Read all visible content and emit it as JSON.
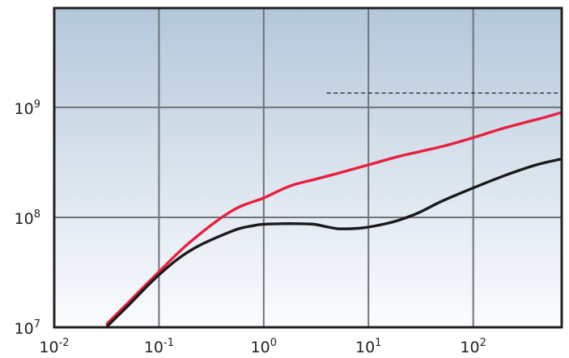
{
  "chart_data": {
    "type": "line",
    "title": "",
    "xlabel": "",
    "ylabel": "",
    "x_scale": "log",
    "y_scale": "log",
    "xlim": [
      0.01,
      700
    ],
    "ylim": [
      10000000,
      8000000000
    ],
    "grid": true,
    "background": "vertical gradient, steel blue at top fading to white at bottom",
    "x_ticks": [
      {
        "base": "10",
        "exp": "-2",
        "value": 0.01
      },
      {
        "base": "10",
        "exp": "-1",
        "value": 0.1
      },
      {
        "base": "10",
        "exp": "0",
        "value": 1
      },
      {
        "base": "10",
        "exp": "1",
        "value": 10
      },
      {
        "base": "10",
        "exp": "2",
        "value": 100
      }
    ],
    "y_ticks": [
      {
        "base": "10",
        "exp": "7",
        "value": 10000000
      },
      {
        "base": "10",
        "exp": "8",
        "value": 100000000
      },
      {
        "base": "10",
        "exp": "9",
        "value": 1000000000
      }
    ],
    "series": [
      {
        "color": "#e8203f",
        "style": "solid",
        "points": [
          [
            0.032,
            10800000
          ],
          [
            0.05,
            16500000
          ],
          [
            0.1,
            32000000
          ],
          [
            0.2,
            60000000
          ],
          [
            0.5,
            115000000
          ],
          [
            1,
            150000000
          ],
          [
            1.5,
            180000000
          ],
          [
            2,
            200000000
          ],
          [
            3,
            220000000
          ],
          [
            5,
            250000000
          ],
          [
            10,
            300000000
          ],
          [
            20,
            360000000
          ],
          [
            50,
            440000000
          ],
          [
            100,
            530000000
          ],
          [
            200,
            650000000
          ],
          [
            500,
            820000000
          ],
          [
            700,
            900000000
          ]
        ]
      },
      {
        "color": "#1a1a1a",
        "style": "solid",
        "points": [
          [
            0.032,
            10200000
          ],
          [
            0.05,
            15500000
          ],
          [
            0.1,
            30000000
          ],
          [
            0.2,
            50000000
          ],
          [
            0.5,
            75000000
          ],
          [
            0.8,
            84000000
          ],
          [
            1,
            86500000
          ],
          [
            1.5,
            87500000
          ],
          [
            2,
            87500000
          ],
          [
            3,
            86500000
          ],
          [
            4,
            82000000
          ],
          [
            5,
            79000000
          ],
          [
            6,
            78500000
          ],
          [
            8,
            79500000
          ],
          [
            10,
            81500000
          ],
          [
            15,
            88000000
          ],
          [
            20,
            95000000
          ],
          [
            30,
            110000000
          ],
          [
            50,
            140000000
          ],
          [
            100,
            185000000
          ],
          [
            200,
            240000000
          ],
          [
            400,
            300000000
          ],
          [
            700,
            340000000
          ]
        ]
      },
      {
        "color": "#1a1a1a",
        "style": "dashed",
        "points": [
          [
            4,
            1350000000
          ],
          [
            700,
            1350000000
          ]
        ]
      }
    ]
  }
}
